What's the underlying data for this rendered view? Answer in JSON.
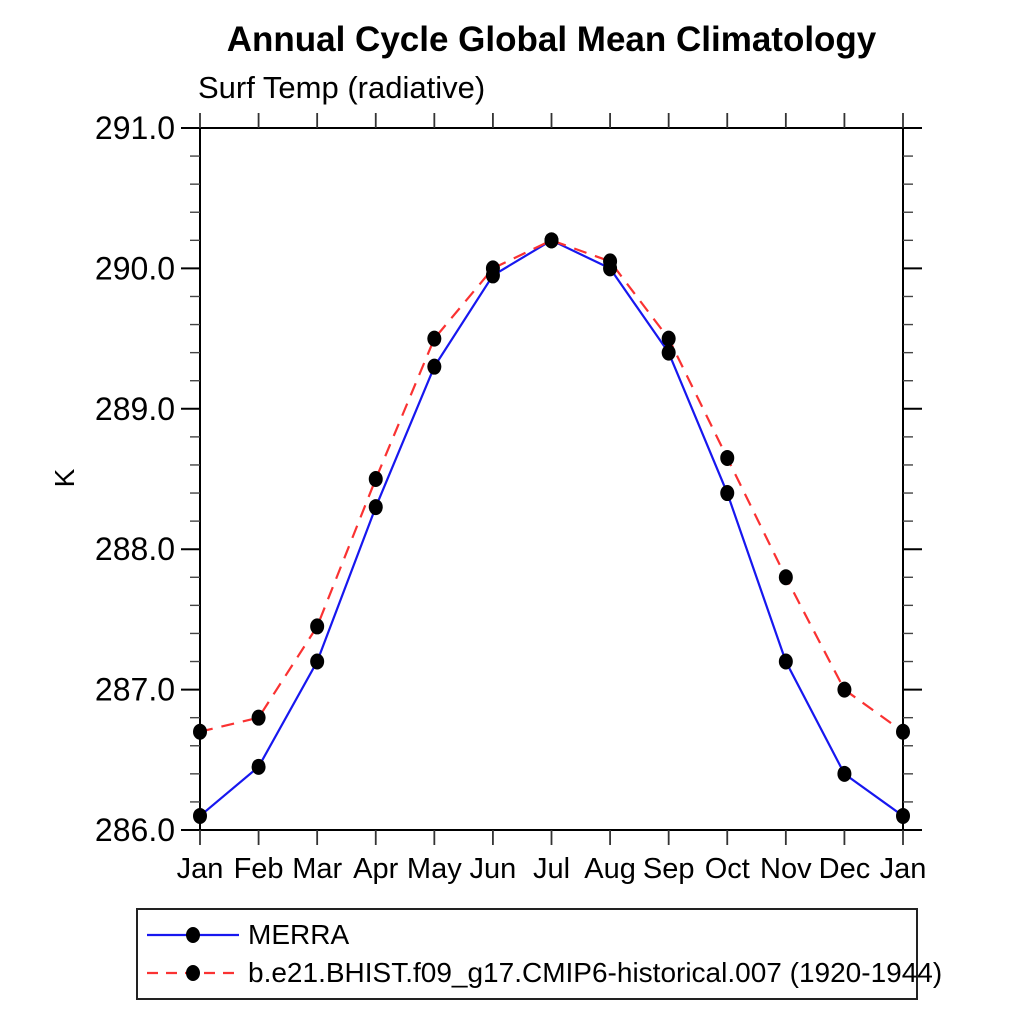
{
  "chart_data": {
    "type": "line",
    "title": "Annual Cycle Global Mean Climatology",
    "subtitle": "Surf Temp (radiative)",
    "ylabel": "K",
    "x_categories": [
      "Jan",
      "Feb",
      "Mar",
      "Apr",
      "May",
      "Jun",
      "Jul",
      "Aug",
      "Sep",
      "Oct",
      "Nov",
      "Dec",
      "Jan"
    ],
    "ylim": [
      286.0,
      291.0
    ],
    "ytick_major_interval": 1.0,
    "ytick_minor_interval": 0.2,
    "ytick_labels": [
      "286.0",
      "287.0",
      "288.0",
      "289.0",
      "290.0",
      "291.0"
    ],
    "grid": false,
    "axis_color": "#000000",
    "legend_position": "bottom-left",
    "series": [
      {
        "name": "MERRA",
        "color": "#1717ef",
        "line_style": "solid",
        "marker": "filled-circle",
        "marker_color": "#000000",
        "values": [
          286.1,
          286.45,
          287.2,
          288.3,
          289.3,
          289.95,
          290.2,
          290.0,
          289.4,
          288.4,
          287.2,
          286.4,
          286.1
        ]
      },
      {
        "name": "b.e21.BHIST.f09_g17.CMIP6-historical.007 (1920-1944)",
        "color": "#fa3232",
        "line_style": "dashed",
        "marker": "filled-circle",
        "marker_color": "#000000",
        "values": [
          286.7,
          286.8,
          287.45,
          288.5,
          289.5,
          290.0,
          290.2,
          290.05,
          289.5,
          288.65,
          287.8,
          287.0,
          286.7
        ]
      }
    ]
  }
}
